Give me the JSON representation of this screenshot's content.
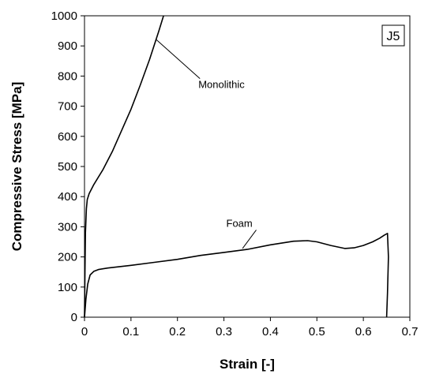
{
  "chart_data": {
    "type": "line",
    "xlabel": "Strain [-]",
    "ylabel": "Compressive Stress [MPa]",
    "xlim": [
      0,
      0.7
    ],
    "ylim": [
      0,
      1000
    ],
    "xticks": [
      "0",
      "0.1",
      "0.2",
      "0.3",
      "0.4",
      "0.5",
      "0.6",
      "0.7"
    ],
    "yticks": [
      "0",
      "100",
      "200",
      "300",
      "400",
      "500",
      "600",
      "700",
      "800",
      "900",
      "1000"
    ],
    "grid": false,
    "legend": "none",
    "panel_label": "J5",
    "series": [
      {
        "name": "Monolithic",
        "x": [
          0,
          0.001,
          0.002,
          0.004,
          0.006,
          0.01,
          0.02,
          0.04,
          0.06,
          0.08,
          0.1,
          0.12,
          0.14,
          0.16,
          0.17
        ],
        "y": [
          0,
          150,
          280,
          360,
          390,
          410,
          440,
          490,
          550,
          620,
          690,
          770,
          855,
          950,
          1000
        ]
      },
      {
        "name": "Foam",
        "x": [
          0,
          0.003,
          0.007,
          0.012,
          0.02,
          0.03,
          0.05,
          0.1,
          0.15,
          0.2,
          0.25,
          0.3,
          0.35,
          0.4,
          0.45,
          0.48,
          0.5,
          0.53,
          0.56,
          0.58,
          0.6,
          0.62,
          0.635,
          0.645,
          0.652,
          0.654,
          0.652,
          0.65
        ],
        "y": [
          0,
          60,
          110,
          140,
          152,
          158,
          163,
          172,
          182,
          192,
          205,
          215,
          225,
          240,
          252,
          254,
          250,
          238,
          228,
          230,
          238,
          250,
          262,
          272,
          278,
          200,
          80,
          0
        ]
      }
    ],
    "annotations": [
      {
        "text": "Monolithic",
        "x": 0.245,
        "y": 760,
        "points_to": [
          0.155,
          920
        ]
      },
      {
        "text": "Foam",
        "x": 0.305,
        "y": 300,
        "points_to": [
          0.34,
          228
        ]
      }
    ]
  }
}
